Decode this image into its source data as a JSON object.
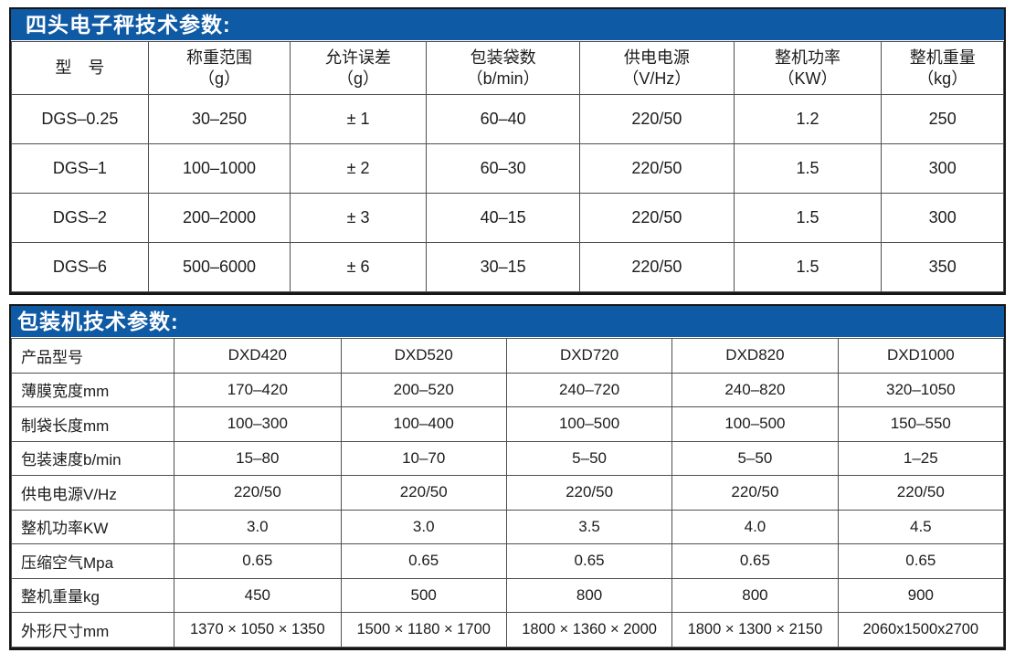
{
  "colors": {
    "header_blue": "#0f5aa5",
    "outer_border": "#161616",
    "grid_line": "#4f4f4f",
    "title_text": "#ffffff",
    "body_text": "#1c1c1c"
  },
  "scale_table": {
    "title": "四头电子秤技术参数:",
    "columns": [
      "型　号",
      "称重范围\n（g）",
      "允许误差\n（g）",
      "包装袋数\n（b/min）",
      "供电电源\n（V/Hz）",
      "整机功率\n（KW）",
      "整机重量\n（kg）"
    ],
    "rows": [
      [
        "DGS–0.25",
        "30–250",
        "± 1",
        "60–40",
        "220/50",
        "1.2",
        "250"
      ],
      [
        "DGS–1",
        "100–1000",
        "± 2",
        "60–30",
        "220/50",
        "1.5",
        "300"
      ],
      [
        "DGS–2",
        "200–2000",
        "± 3",
        "40–15",
        "220/50",
        "1.5",
        "300"
      ],
      [
        "DGS–6",
        "500–6000",
        "± 6",
        "30–15",
        "220/50",
        "1.5",
        "350"
      ]
    ]
  },
  "packer_table": {
    "title": "包装机技术参数:",
    "rows": [
      [
        "产品型号",
        "DXD420",
        "DXD520",
        "DXD720",
        "DXD820",
        "DXD1000"
      ],
      [
        "薄膜宽度mm",
        "170–420",
        "200–520",
        "240–720",
        "240–820",
        "320–1050"
      ],
      [
        "制袋长度mm",
        "100–300",
        "100–400",
        "100–500",
        "100–500",
        "150–550"
      ],
      [
        "包装速度b/min",
        "15–80",
        "10–70",
        "5–50",
        "5–50",
        "1–25"
      ],
      [
        "供电电源V/Hz",
        "220/50",
        "220/50",
        "220/50",
        "220/50",
        "220/50"
      ],
      [
        "整机功率KW",
        "3.0",
        "3.0",
        "3.5",
        "4.0",
        "4.5"
      ],
      [
        "压缩空气Mpa",
        "0.65",
        "0.65",
        "0.65",
        "0.65",
        "0.65"
      ],
      [
        "整机重量kg",
        "450",
        "500",
        "800",
        "800",
        "900"
      ],
      [
        "外形尺寸mm",
        "1370 × 1050 × 1350",
        "1500 × 1180 × 1700",
        "1800 × 1360 × 2000",
        "1800 × 1300 × 2150",
        "2060x1500x2700"
      ]
    ]
  }
}
